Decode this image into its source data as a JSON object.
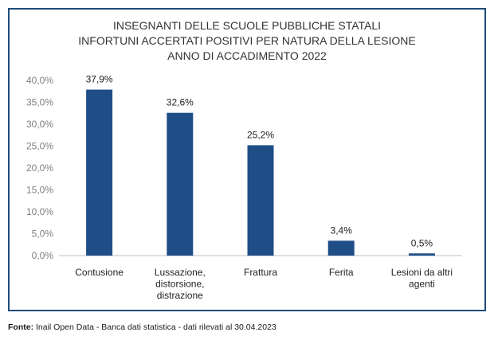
{
  "chart_data": {
    "type": "bar",
    "title_lines": [
      "INSEGNANTI DELLE SCUOLE PUBBLICHE STATALI",
      "INFORTUNI ACCERTATI POSITIVI PER NATURA DELLA LESIONE",
      "ANNO DI ACCADIMENTO 2022"
    ],
    "categories": [
      [
        "Contusione"
      ],
      [
        "Lussazione,",
        "distorsione,",
        "distrazione"
      ],
      [
        "Frattura"
      ],
      [
        "Ferita"
      ],
      [
        "Lesioni da altri",
        "agenti"
      ]
    ],
    "values": [
      37.9,
      32.6,
      25.2,
      3.4,
      0.5
    ],
    "value_labels": [
      "37,9%",
      "32,6%",
      "25,2%",
      "3,4%",
      "0,5%"
    ],
    "y_ticks": [
      0,
      5,
      10,
      15,
      20,
      25,
      30,
      35,
      40
    ],
    "y_tick_labels": [
      "0,0%",
      "5,0%",
      "10,0%",
      "15,0%",
      "20,0%",
      "25,0%",
      "30,0%",
      "35,0%",
      "40,0%"
    ],
    "ylim": [
      0,
      40
    ],
    "bar_color": "#1f4e87",
    "xlabel": "",
    "ylabel": ""
  },
  "source": {
    "label": "Fonte:",
    "text": "Inail Open Data - Banca dati statistica - dati rilevati al 30.04.2023"
  }
}
